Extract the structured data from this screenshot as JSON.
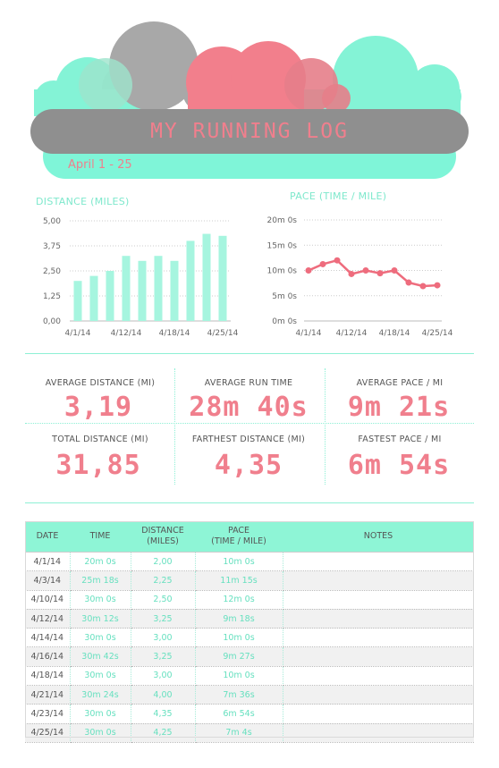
{
  "header": {
    "title": "MY RUNNING LOG",
    "date_range": "April 1 - 25"
  },
  "colors": {
    "mint": "#7ff5d8",
    "pink": "#f27f8c",
    "gray": "#8f8f8f",
    "cloud_gray": "#a8a8a8"
  },
  "chart_data": [
    {
      "type": "bar",
      "title": "DISTANCE (MILES)",
      "categories": [
        "4/1/14",
        "4/3/14",
        "4/10/14",
        "4/12/14",
        "4/14/14",
        "4/16/14",
        "4/18/14",
        "4/21/14",
        "4/23/14",
        "4/25/14"
      ],
      "values": [
        2.0,
        2.25,
        2.5,
        3.25,
        3.0,
        3.25,
        3.0,
        4.0,
        4.35,
        4.25
      ],
      "x_tick_labels": [
        "4/1/14",
        "4/12/14",
        "4/18/14",
        "4/25/14"
      ],
      "y_tick_labels": [
        "0,00",
        "1,25",
        "2,50",
        "3,75",
        "5,00"
      ],
      "ylim": [
        0,
        5
      ],
      "grid": true,
      "color": "#a6f5df"
    },
    {
      "type": "line",
      "title": "PACE (TIME / MILE)",
      "x": [
        "4/1/14",
        "4/3/14",
        "4/10/14",
        "4/12/14",
        "4/14/14",
        "4/16/14",
        "4/18/14",
        "4/21/14",
        "4/23/14",
        "4/25/14"
      ],
      "values_seconds": [
        600,
        675,
        720,
        558,
        600,
        567,
        600,
        456,
        414,
        424
      ],
      "x_tick_labels": [
        "4/1/14",
        "4/12/14",
        "4/18/14",
        "4/25/14"
      ],
      "y_tick_labels": [
        "0m 0s",
        "5m 0s",
        "10m 0s",
        "15m 0s",
        "20m 0s"
      ],
      "ylim_seconds": [
        0,
        1200
      ],
      "grid": true,
      "color": "#ee6c7d"
    }
  ],
  "stats": {
    "avg_distance_label": "AVERAGE DISTANCE (MI)",
    "avg_distance_value": "3,19",
    "avg_run_time_label": "AVERAGE RUN TIME",
    "avg_run_time_value": "28m 40s",
    "avg_pace_label": "AVERAGE PACE / MI",
    "avg_pace_value": "9m 21s",
    "total_distance_label": "TOTAL DISTANCE (MI)",
    "total_distance_value": "31,85",
    "farthest_distance_label": "FARTHEST DISTANCE (MI)",
    "farthest_distance_value": "4,35",
    "fastest_pace_label": "FASTEST PACE / MI",
    "fastest_pace_value": "6m 54s"
  },
  "table": {
    "headers": {
      "date": "DATE",
      "time": "TIME",
      "distance_1": "DISTANCE",
      "distance_2": "(MILES)",
      "pace_1": "PACE",
      "pace_2": "(TIME / MILE)",
      "notes": "NOTES"
    },
    "rows": [
      {
        "date": "4/1/14",
        "time": "20m 0s",
        "distance": "2,00",
        "pace": "10m 0s",
        "notes": ""
      },
      {
        "date": "4/3/14",
        "time": "25m 18s",
        "distance": "2,25",
        "pace": "11m 15s",
        "notes": ""
      },
      {
        "date": "4/10/14",
        "time": "30m 0s",
        "distance": "2,50",
        "pace": "12m 0s",
        "notes": ""
      },
      {
        "date": "4/12/14",
        "time": "30m 12s",
        "distance": "3,25",
        "pace": "9m 18s",
        "notes": ""
      },
      {
        "date": "4/14/14",
        "time": "30m 0s",
        "distance": "3,00",
        "pace": "10m 0s",
        "notes": ""
      },
      {
        "date": "4/16/14",
        "time": "30m 42s",
        "distance": "3,25",
        "pace": "9m 27s",
        "notes": ""
      },
      {
        "date": "4/18/14",
        "time": "30m 0s",
        "distance": "3,00",
        "pace": "10m 0s",
        "notes": ""
      },
      {
        "date": "4/21/14",
        "time": "30m 24s",
        "distance": "4,00",
        "pace": "7m 36s",
        "notes": ""
      },
      {
        "date": "4/23/14",
        "time": "30m 0s",
        "distance": "4,35",
        "pace": "6m 54s",
        "notes": ""
      },
      {
        "date": "4/25/14",
        "time": "30m 0s",
        "distance": "4,25",
        "pace": "7m 4s",
        "notes": ""
      }
    ]
  }
}
